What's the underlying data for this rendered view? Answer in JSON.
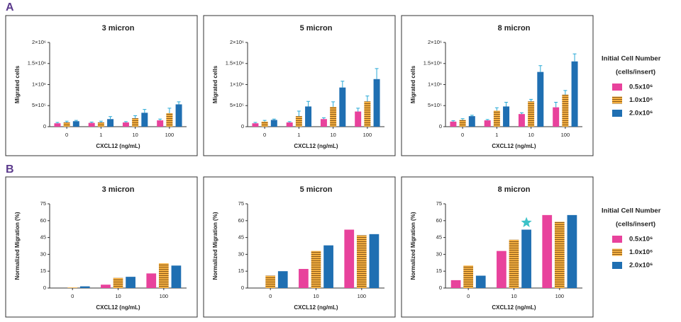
{
  "panel_labels": [
    "A",
    "B"
  ],
  "legend": {
    "title": "Initial Cell Number",
    "subtitle": "(cells/insert)"
  },
  "chart_data": [
    {
      "type": "bar",
      "title": "3 micron",
      "x_label": "CXCL12 (ng/mL)",
      "y_label": "Migrated cells",
      "categories": [
        "0",
        "1",
        "10",
        "100"
      ],
      "ylim": [
        0,
        2000000
      ],
      "yticks": [
        0,
        {
          "value": 500000,
          "label": "5×10⁵"
        },
        {
          "value": 1000000,
          "label": "1×10⁶"
        },
        {
          "value": 1500000,
          "label": "1.5×10⁶"
        },
        {
          "value": 2000000,
          "label": "2×10⁶"
        }
      ],
      "series": [
        {
          "name": "0.5x10⁶",
          "color": "#e8429c",
          "values": [
            80000,
            90000,
            100000,
            150000
          ],
          "errors": [
            20000,
            20000,
            20000,
            30000
          ]
        },
        {
          "name": "1.0x10⁶",
          "color": "#f5b041",
          "hatch": "horizontal",
          "values": [
            100000,
            100000,
            200000,
            320000
          ],
          "errors": [
            30000,
            30000,
            60000,
            120000
          ]
        },
        {
          "name": "2.0x10⁶",
          "color": "#1f6fb2",
          "values": [
            130000,
            180000,
            330000,
            530000
          ],
          "errors": [
            20000,
            60000,
            80000,
            60000
          ]
        }
      ]
    },
    {
      "type": "bar",
      "title": "5 micron",
      "x_label": "CXCL12 (ng/mL)",
      "y_label": "Migrated cells",
      "categories": [
        "0",
        "1",
        "10",
        "100"
      ],
      "ylim": [
        0,
        2000000
      ],
      "yticks": [
        0,
        {
          "value": 500000,
          "label": "5×10⁵"
        },
        {
          "value": 1000000,
          "label": "1×10⁶"
        },
        {
          "value": 1500000,
          "label": "1.5×10⁶"
        },
        {
          "value": 2000000,
          "label": "2×10⁶"
        }
      ],
      "series": [
        {
          "name": "0.5x10⁶",
          "color": "#e8429c",
          "values": [
            80000,
            100000,
            180000,
            360000
          ],
          "errors": [
            20000,
            20000,
            30000,
            80000
          ]
        },
        {
          "name": "1.0x10⁶",
          "color": "#f5b041",
          "hatch": "horizontal",
          "values": [
            120000,
            250000,
            470000,
            600000
          ],
          "errors": [
            30000,
            120000,
            120000,
            130000
          ]
        },
        {
          "name": "2.0x10⁶",
          "color": "#1f6fb2",
          "values": [
            160000,
            480000,
            930000,
            1130000
          ],
          "errors": [
            20000,
            120000,
            150000,
            250000
          ]
        }
      ]
    },
    {
      "type": "bar",
      "title": "8 micron",
      "x_label": "CXCL12 (ng/mL)",
      "y_label": "Migrated cells",
      "categories": [
        "0",
        "1",
        "10",
        "100"
      ],
      "ylim": [
        0,
        2000000
      ],
      "yticks": [
        0,
        {
          "value": 500000,
          "label": "5×10⁵"
        },
        {
          "value": 1000000,
          "label": "1×10⁶"
        },
        {
          "value": 1500000,
          "label": "1.5×10⁶"
        },
        {
          "value": 2000000,
          "label": "2×10⁶"
        }
      ],
      "series": [
        {
          "name": "0.5x10⁶",
          "color": "#e8429c",
          "values": [
            120000,
            150000,
            300000,
            460000
          ],
          "errors": [
            20000,
            20000,
            30000,
            120000
          ]
        },
        {
          "name": "1.0x10⁶",
          "color": "#f5b041",
          "hatch": "horizontal",
          "values": [
            160000,
            380000,
            600000,
            760000
          ],
          "errors": [
            30000,
            70000,
            50000,
            100000
          ]
        },
        {
          "name": "2.0x10⁶",
          "color": "#1f6fb2",
          "values": [
            250000,
            480000,
            1300000,
            1550000
          ],
          "errors": [
            20000,
            100000,
            150000,
            180000
          ]
        }
      ]
    },
    {
      "type": "bar",
      "title": "3 micron",
      "x_label": "CXCL12 (ng/mL)",
      "y_label": "Normalized Migration (%)",
      "categories": [
        "0",
        "10",
        "100"
      ],
      "ylim": [
        0,
        75
      ],
      "yticks": [
        0,
        15,
        30,
        45,
        60,
        75
      ],
      "series": [
        {
          "name": "0.5x10⁶",
          "color": "#e8429c",
          "values": [
            0,
            3,
            13
          ]
        },
        {
          "name": "1.0x10⁶",
          "color": "#f5b041",
          "hatch": "horizontal",
          "values": [
            0.5,
            9,
            22
          ]
        },
        {
          "name": "2.0x10⁶",
          "color": "#1f6fb2",
          "values": [
            1.5,
            10,
            20
          ]
        }
      ]
    },
    {
      "type": "bar",
      "title": "5 micron",
      "x_label": "CXCL12 (ng/mL)",
      "y_label": "Normalized Migration (%)",
      "categories": [
        "0",
        "10",
        "100"
      ],
      "ylim": [
        0,
        75
      ],
      "yticks": [
        0,
        15,
        30,
        45,
        60,
        75
      ],
      "series": [
        {
          "name": "0.5x10⁶",
          "color": "#e8429c",
          "values": [
            0,
            17,
            52
          ]
        },
        {
          "name": "1.0x10⁶",
          "color": "#f5b041",
          "hatch": "horizontal",
          "values": [
            11,
            33,
            47
          ]
        },
        {
          "name": "2.0x10⁶",
          "color": "#1f6fb2",
          "values": [
            15,
            38,
            48
          ]
        }
      ]
    },
    {
      "type": "bar",
      "title": "8 micron",
      "x_label": "CXCL12 (ng/mL)",
      "y_label": "Normalized Migration (%)",
      "categories": [
        "0",
        "10",
        "100"
      ],
      "ylim": [
        0,
        75
      ],
      "yticks": [
        0,
        15,
        30,
        45,
        60,
        75
      ],
      "series": [
        {
          "name": "0.5x10⁶",
          "color": "#e8429c",
          "values": [
            7,
            33,
            65
          ]
        },
        {
          "name": "1.0x10⁶",
          "color": "#f5b041",
          "hatch": "horizontal",
          "values": [
            20,
            43,
            59
          ]
        },
        {
          "name": "2.0x10⁶",
          "color": "#1f6fb2",
          "values": [
            11,
            52,
            65
          ]
        }
      ]
    }
  ]
}
